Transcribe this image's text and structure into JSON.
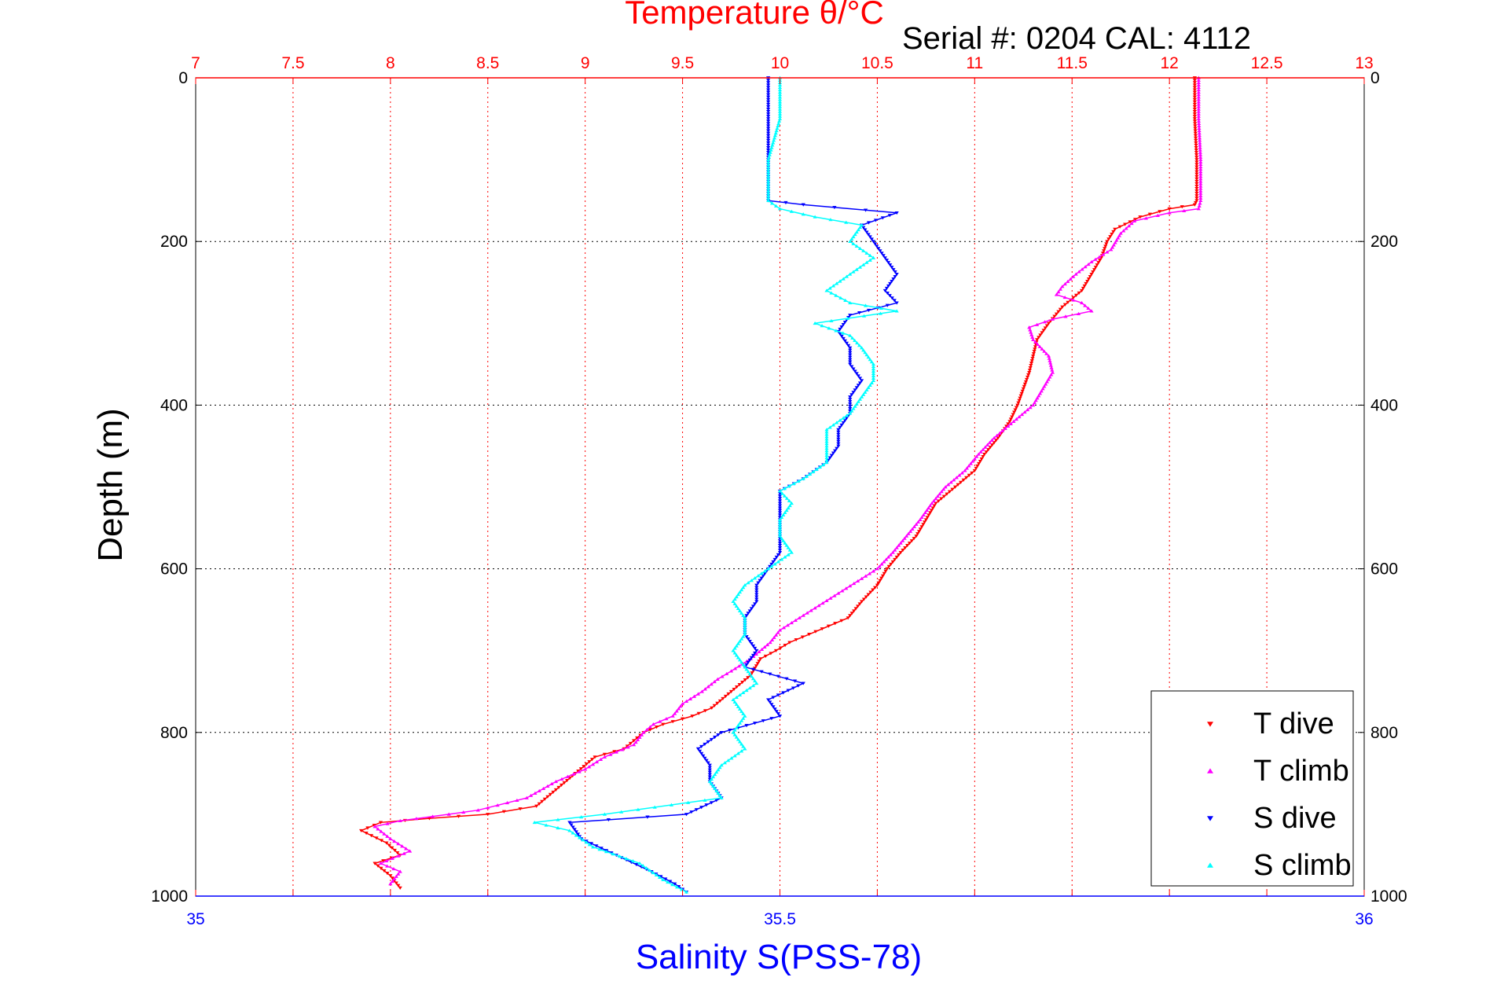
{
  "chart_data": {
    "type": "scatter",
    "title": "Temperature θ/°C",
    "subtitle": "Serial #: 0204  CAL: 4112",
    "ylabel": "Depth (m)",
    "xlabel_bottom": "Salinity S(PSS-78)",
    "top_axis": {
      "label": "Temperature θ/°C",
      "range": [
        7,
        13
      ],
      "ticks": [
        "7",
        "7.5",
        "8",
        "8.5",
        "9",
        "9.5",
        "10",
        "10.5",
        "11",
        "11.5",
        "12",
        "12.5",
        "13"
      ],
      "color": "#ff0000"
    },
    "bottom_axis": {
      "label": "Salinity S(PSS-78)",
      "range": [
        35,
        36
      ],
      "ticks": [
        "35",
        "35.5",
        "36"
      ],
      "color": "#0000ff"
    },
    "y_axis": {
      "label": "Depth (m)",
      "range": [
        0,
        1000
      ],
      "reversed": true,
      "ticks": [
        "0",
        "200",
        "400",
        "600",
        "800",
        "1000"
      ]
    },
    "grid": true,
    "legend_position": "bottom-right",
    "series": [
      {
        "name": "T dive",
        "axis": "temperature",
        "color": "#ff0000",
        "marker": "down-triangle",
        "points": [
          [
            12.13,
            0
          ],
          [
            12.13,
            50
          ],
          [
            12.14,
            100
          ],
          [
            12.14,
            150
          ],
          [
            12.13,
            155
          ],
          [
            12.0,
            160
          ],
          [
            11.85,
            170
          ],
          [
            11.72,
            185
          ],
          [
            11.68,
            200
          ],
          [
            11.65,
            220
          ],
          [
            11.6,
            240
          ],
          [
            11.55,
            260
          ],
          [
            11.45,
            280
          ],
          [
            11.38,
            300
          ],
          [
            11.32,
            320
          ],
          [
            11.3,
            340
          ],
          [
            11.28,
            360
          ],
          [
            11.25,
            380
          ],
          [
            11.22,
            400
          ],
          [
            11.18,
            420
          ],
          [
            11.12,
            440
          ],
          [
            11.05,
            460
          ],
          [
            11.0,
            480
          ],
          [
            10.9,
            500
          ],
          [
            10.8,
            520
          ],
          [
            10.75,
            540
          ],
          [
            10.7,
            560
          ],
          [
            10.62,
            580
          ],
          [
            10.55,
            600
          ],
          [
            10.5,
            620
          ],
          [
            10.42,
            640
          ],
          [
            10.35,
            660
          ],
          [
            10.25,
            670
          ],
          [
            10.15,
            680
          ],
          [
            10.05,
            690
          ],
          [
            9.98,
            700
          ],
          [
            9.9,
            710
          ],
          [
            9.85,
            730
          ],
          [
            9.75,
            750
          ],
          [
            9.65,
            770
          ],
          [
            9.55,
            780
          ],
          [
            9.4,
            790
          ],
          [
            9.3,
            800
          ],
          [
            9.25,
            810
          ],
          [
            9.2,
            820
          ],
          [
            9.05,
            830
          ],
          [
            8.95,
            850
          ],
          [
            8.85,
            870
          ],
          [
            8.75,
            890
          ],
          [
            8.5,
            900
          ],
          [
            8.2,
            905
          ],
          [
            7.95,
            910
          ],
          [
            7.85,
            920
          ],
          [
            7.98,
            935
          ],
          [
            8.05,
            950
          ],
          [
            7.92,
            960
          ],
          [
            8.0,
            975
          ],
          [
            8.05,
            990
          ]
        ]
      },
      {
        "name": "T climb",
        "axis": "temperature",
        "color": "#ff00ff",
        "marker": "up-triangle",
        "points": [
          [
            12.15,
            0
          ],
          [
            12.15,
            50
          ],
          [
            12.16,
            100
          ],
          [
            12.16,
            150
          ],
          [
            12.15,
            160
          ],
          [
            12.0,
            165
          ],
          [
            11.82,
            175
          ],
          [
            11.75,
            190
          ],
          [
            11.7,
            210
          ],
          [
            11.6,
            225
          ],
          [
            11.52,
            240
          ],
          [
            11.45,
            255
          ],
          [
            11.42,
            265
          ],
          [
            11.55,
            275
          ],
          [
            11.6,
            285
          ],
          [
            11.4,
            295
          ],
          [
            11.28,
            305
          ],
          [
            11.3,
            320
          ],
          [
            11.38,
            340
          ],
          [
            11.4,
            360
          ],
          [
            11.35,
            380
          ],
          [
            11.3,
            400
          ],
          [
            11.2,
            420
          ],
          [
            11.1,
            440
          ],
          [
            11.02,
            460
          ],
          [
            10.95,
            480
          ],
          [
            10.85,
            500
          ],
          [
            10.78,
            520
          ],
          [
            10.72,
            540
          ],
          [
            10.65,
            560
          ],
          [
            10.58,
            580
          ],
          [
            10.5,
            600
          ],
          [
            10.4,
            615
          ],
          [
            10.3,
            630
          ],
          [
            10.2,
            645
          ],
          [
            10.1,
            660
          ],
          [
            10.0,
            675
          ],
          [
            9.95,
            690
          ],
          [
            9.85,
            710
          ],
          [
            9.75,
            725
          ],
          [
            9.68,
            735
          ],
          [
            9.6,
            750
          ],
          [
            9.5,
            765
          ],
          [
            9.45,
            780
          ],
          [
            9.35,
            790
          ],
          [
            9.3,
            800
          ],
          [
            9.25,
            815
          ],
          [
            9.1,
            830
          ],
          [
            9.0,
            845
          ],
          [
            8.85,
            860
          ],
          [
            8.7,
            880
          ],
          [
            8.45,
            895
          ],
          [
            8.3,
            900
          ],
          [
            8.05,
            908
          ],
          [
            7.92,
            915
          ],
          [
            8.0,
            930
          ],
          [
            8.1,
            945
          ],
          [
            7.95,
            960
          ],
          [
            8.05,
            970
          ],
          [
            8.0,
            985
          ]
        ]
      },
      {
        "name": "S dive",
        "axis": "salinity",
        "color": "#0000ff",
        "marker": "down-triangle",
        "points": [
          [
            35.49,
            0
          ],
          [
            35.49,
            50
          ],
          [
            35.49,
            100
          ],
          [
            35.49,
            150
          ],
          [
            35.52,
            155
          ],
          [
            35.6,
            165
          ],
          [
            35.57,
            180
          ],
          [
            35.58,
            200
          ],
          [
            35.59,
            220
          ],
          [
            35.6,
            240
          ],
          [
            35.59,
            260
          ],
          [
            35.6,
            275
          ],
          [
            35.56,
            290
          ],
          [
            35.55,
            310
          ],
          [
            35.56,
            330
          ],
          [
            35.56,
            350
          ],
          [
            35.57,
            370
          ],
          [
            35.56,
            390
          ],
          [
            35.56,
            410
          ],
          [
            35.55,
            430
          ],
          [
            35.55,
            450
          ],
          [
            35.54,
            470
          ],
          [
            35.52,
            490
          ],
          [
            35.5,
            505
          ],
          [
            35.5,
            520
          ],
          [
            35.5,
            540
          ],
          [
            35.5,
            560
          ],
          [
            35.5,
            580
          ],
          [
            35.49,
            600
          ],
          [
            35.48,
            620
          ],
          [
            35.48,
            640
          ],
          [
            35.47,
            660
          ],
          [
            35.47,
            680
          ],
          [
            35.48,
            700
          ],
          [
            35.47,
            720
          ],
          [
            35.52,
            740
          ],
          [
            35.49,
            760
          ],
          [
            35.5,
            780
          ],
          [
            35.45,
            800
          ],
          [
            35.43,
            820
          ],
          [
            35.44,
            840
          ],
          [
            35.44,
            860
          ],
          [
            35.45,
            880
          ],
          [
            35.42,
            900
          ],
          [
            35.32,
            910
          ],
          [
            35.33,
            930
          ],
          [
            35.36,
            950
          ],
          [
            35.39,
            970
          ],
          [
            35.41,
            985
          ],
          [
            35.42,
            995
          ]
        ]
      },
      {
        "name": "S climb",
        "axis": "salinity",
        "color": "#00ffff",
        "marker": "up-triangle",
        "points": [
          [
            35.5,
            0
          ],
          [
            35.5,
            50
          ],
          [
            35.49,
            100
          ],
          [
            35.49,
            150
          ],
          [
            35.5,
            160
          ],
          [
            35.53,
            170
          ],
          [
            35.57,
            180
          ],
          [
            35.56,
            200
          ],
          [
            35.58,
            220
          ],
          [
            35.56,
            240
          ],
          [
            35.54,
            260
          ],
          [
            35.56,
            275
          ],
          [
            35.6,
            285
          ],
          [
            35.53,
            300
          ],
          [
            35.56,
            315
          ],
          [
            35.57,
            330
          ],
          [
            35.58,
            350
          ],
          [
            35.58,
            370
          ],
          [
            35.57,
            390
          ],
          [
            35.56,
            410
          ],
          [
            35.54,
            430
          ],
          [
            35.54,
            450
          ],
          [
            35.54,
            470
          ],
          [
            35.52,
            490
          ],
          [
            35.5,
            505
          ],
          [
            35.51,
            520
          ],
          [
            35.5,
            540
          ],
          [
            35.5,
            560
          ],
          [
            35.51,
            580
          ],
          [
            35.49,
            600
          ],
          [
            35.47,
            620
          ],
          [
            35.46,
            640
          ],
          [
            35.47,
            660
          ],
          [
            35.47,
            680
          ],
          [
            35.46,
            700
          ],
          [
            35.47,
            720
          ],
          [
            35.48,
            740
          ],
          [
            35.46,
            760
          ],
          [
            35.47,
            780
          ],
          [
            35.46,
            800
          ],
          [
            35.47,
            820
          ],
          [
            35.45,
            840
          ],
          [
            35.44,
            860
          ],
          [
            35.45,
            880
          ],
          [
            35.35,
            900
          ],
          [
            35.29,
            910
          ],
          [
            35.32,
            920
          ],
          [
            35.34,
            940
          ],
          [
            35.38,
            960
          ],
          [
            35.4,
            980
          ],
          [
            35.42,
            995
          ]
        ]
      }
    ]
  }
}
